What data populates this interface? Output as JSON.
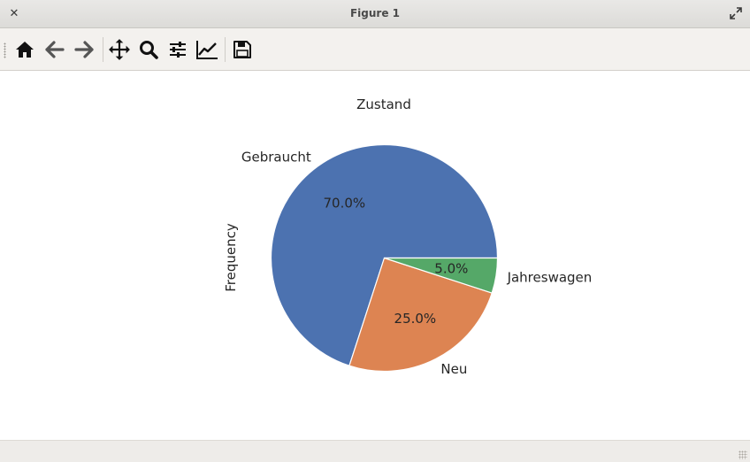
{
  "window": {
    "title": "Figure 1",
    "close_icon": "close-icon",
    "maximize_icon": "maximize-icon"
  },
  "toolbar": {
    "buttons": [
      {
        "name": "home-button",
        "icon": "home-icon"
      },
      {
        "name": "back-button",
        "icon": "arrow-left-icon"
      },
      {
        "name": "forward-button",
        "icon": "arrow-right-icon"
      },
      {
        "name": "pan-button",
        "icon": "move-icon"
      },
      {
        "name": "zoom-button",
        "icon": "search-icon"
      },
      {
        "name": "configure-subplots-button",
        "icon": "sliders-icon"
      },
      {
        "name": "edit-axes-button",
        "icon": "line-chart-icon"
      },
      {
        "name": "save-button",
        "icon": "floppy-disk-icon"
      }
    ]
  },
  "chart_data": {
    "type": "pie",
    "title": "Zustand",
    "ylabel": "Frequency",
    "categories": [
      "Gebraucht",
      "Neu",
      "Jahreswagen"
    ],
    "values": [
      70.0,
      25.0,
      5.0
    ],
    "pct_labels": [
      "70.0%",
      "25.0%",
      "5.0%"
    ],
    "colors": [
      "#4c72b0",
      "#dd8452",
      "#55a868"
    ],
    "start_angle_deg": 0,
    "direction": "counterclockwise"
  }
}
